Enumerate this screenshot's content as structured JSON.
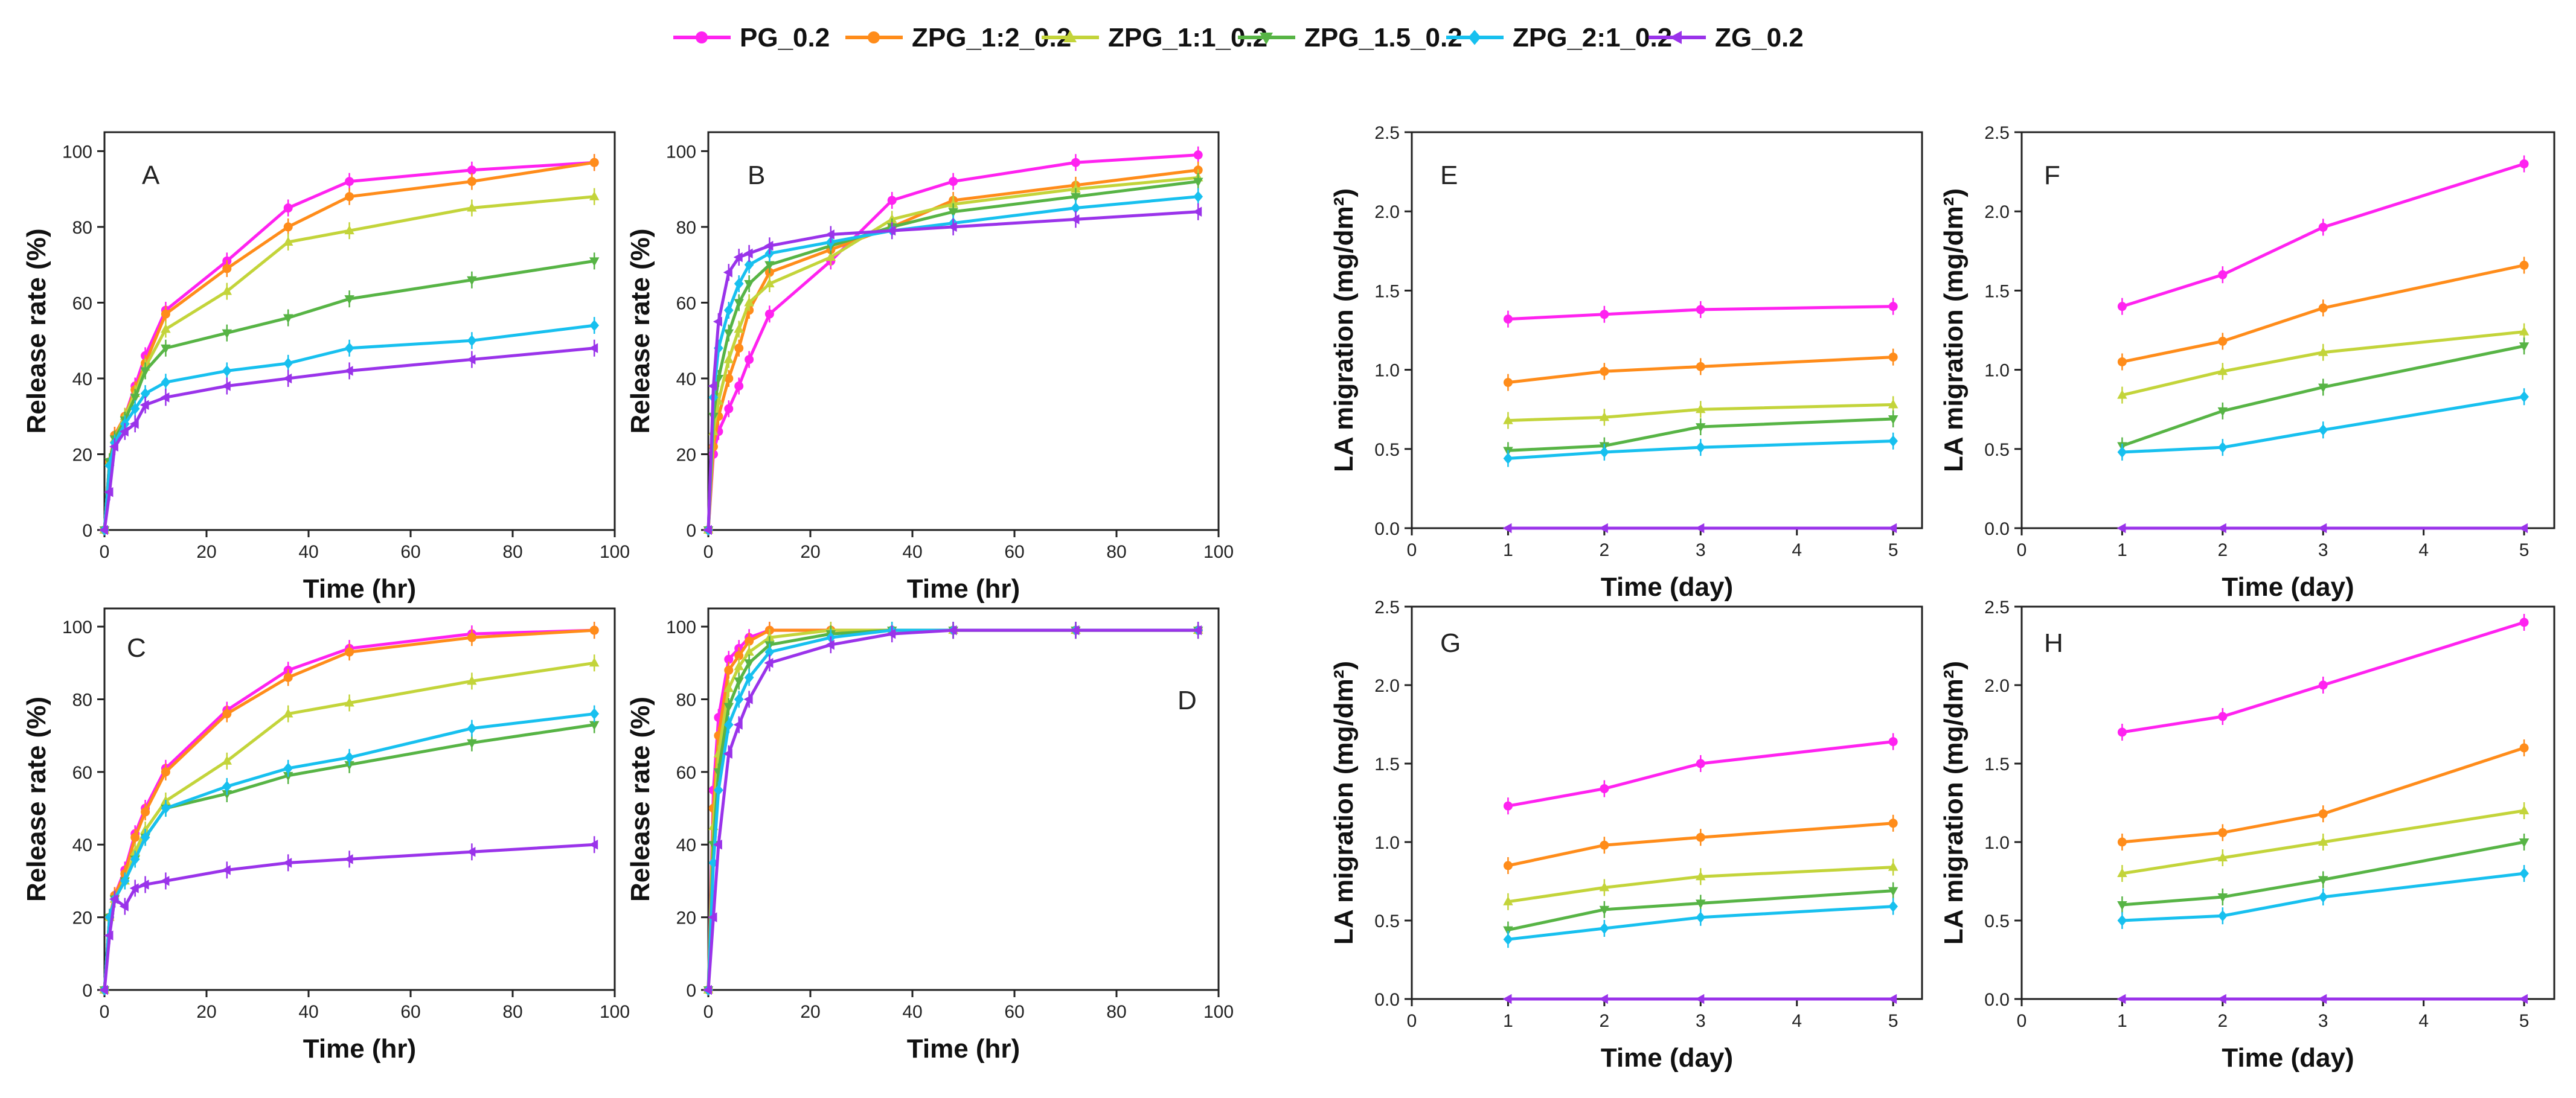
{
  "colors": {
    "PG_0.2": "#ff22f0",
    "ZPG_1:2_0.2": "#ff8c1a",
    "ZPG_1:1_0.2": "#c3d43a",
    "ZPG_1.5_0.2": "#57b445",
    "ZPG_2:1_0.2": "#17c0ef",
    "ZG_0.2": "#9a33ea"
  },
  "legend": [
    {
      "label": "PG_0.2",
      "marker": "circle"
    },
    {
      "label": "ZPG_1:2_0.2",
      "marker": "circle"
    },
    {
      "label": "ZPG_1:1_0.2",
      "marker": "triangle-up"
    },
    {
      "label": "ZPG_1.5_0.2",
      "marker": "triangle-down"
    },
    {
      "label": "ZPG_2:1_0.2",
      "marker": "diamond"
    },
    {
      "label": "ZG_0.2",
      "marker": "triangle-left"
    }
  ],
  "chart_data": [
    {
      "panel": "A",
      "type": "line",
      "xlabel": "Time (hr)",
      "ylabel": "Release rate (%)",
      "xlim": [
        0,
        100
      ],
      "ylim": [
        0,
        105
      ],
      "xticks": [
        "0",
        "20",
        "40",
        "60",
        "80",
        "100"
      ],
      "yticks": [
        "0",
        "20",
        "40",
        "60",
        "80",
        "100"
      ],
      "x": [
        0,
        1,
        2,
        4,
        6,
        8,
        12,
        24,
        36,
        48,
        72,
        96
      ],
      "series": [
        {
          "name": "PG_0.2",
          "values": [
            0,
            18,
            25,
            30,
            38,
            46,
            58,
            71,
            85,
            92,
            95,
            97
          ]
        },
        {
          "name": "ZPG_1:2_0.2",
          "values": [
            0,
            18,
            25,
            30,
            37,
            44,
            57,
            69,
            80,
            88,
            92,
            97
          ]
        },
        {
          "name": "ZPG_1:1_0.2",
          "values": [
            0,
            18,
            24,
            30,
            36,
            43,
            53,
            63,
            76,
            79,
            85,
            88
          ]
        },
        {
          "name": "ZPG_1.5_0.2",
          "values": [
            0,
            18,
            24,
            29,
            35,
            42,
            48,
            52,
            56,
            61,
            66,
            71
          ]
        },
        {
          "name": "ZPG_2:1_0.2",
          "values": [
            0,
            17,
            23,
            28,
            32,
            36,
            39,
            42,
            44,
            48,
            50,
            54
          ]
        },
        {
          "name": "ZG_0.2",
          "values": [
            0,
            10,
            22,
            26,
            28,
            33,
            35,
            38,
            40,
            42,
            45,
            48
          ]
        }
      ]
    },
    {
      "panel": "B",
      "type": "line",
      "xlabel": "Time (hr)",
      "ylabel": "Release rate (%)",
      "xlim": [
        0,
        100
      ],
      "ylim": [
        0,
        105
      ],
      "xticks": [
        "0",
        "20",
        "40",
        "60",
        "80",
        "100"
      ],
      "yticks": [
        "0",
        "20",
        "40",
        "60",
        "80",
        "100"
      ],
      "x": [
        0,
        1,
        2,
        4,
        6,
        8,
        12,
        24,
        36,
        48,
        72,
        96
      ],
      "series": [
        {
          "name": "PG_0.2",
          "values": [
            0,
            20,
            26,
            32,
            38,
            45,
            57,
            71,
            87,
            92,
            97,
            99
          ]
        },
        {
          "name": "ZPG_1:2_0.2",
          "values": [
            0,
            22,
            30,
            40,
            48,
            58,
            68,
            74,
            80,
            87,
            91,
            95
          ]
        },
        {
          "name": "ZPG_1:1_0.2",
          "values": [
            0,
            26,
            34,
            45,
            53,
            60,
            65,
            72,
            82,
            86,
            90,
            93
          ]
        },
        {
          "name": "ZPG_1.5_0.2",
          "values": [
            0,
            30,
            40,
            52,
            60,
            65,
            70,
            75,
            80,
            84,
            88,
            92
          ]
        },
        {
          "name": "ZPG_2:1_0.2",
          "values": [
            0,
            35,
            48,
            58,
            65,
            70,
            73,
            76,
            79,
            81,
            85,
            88
          ]
        },
        {
          "name": "ZG_0.2",
          "values": [
            0,
            38,
            55,
            68,
            72,
            73,
            75,
            78,
            79,
            80,
            82,
            84
          ]
        }
      ]
    },
    {
      "panel": "C",
      "type": "line",
      "xlabel": "Time (hr)",
      "ylabel": "Release rate (%)",
      "xlim": [
        0,
        100
      ],
      "ylim": [
        0,
        105
      ],
      "xticks": [
        "0",
        "20",
        "40",
        "60",
        "80",
        "100"
      ],
      "yticks": [
        "0",
        "20",
        "40",
        "60",
        "80",
        "100"
      ],
      "x": [
        0,
        1,
        2,
        4,
        6,
        8,
        12,
        24,
        36,
        48,
        72,
        96
      ],
      "series": [
        {
          "name": "PG_0.2",
          "values": [
            0,
            20,
            26,
            33,
            43,
            50,
            61,
            77,
            88,
            94,
            98,
            99
          ]
        },
        {
          "name": "ZPG_1:2_0.2",
          "values": [
            0,
            20,
            26,
            32,
            42,
            49,
            60,
            76,
            86,
            93,
            97,
            99
          ]
        },
        {
          "name": "ZPG_1:1_0.2",
          "values": [
            0,
            20,
            25,
            30,
            38,
            44,
            52,
            63,
            76,
            79,
            85,
            90
          ]
        },
        {
          "name": "ZPG_1.5_0.2",
          "values": [
            0,
            20,
            25,
            30,
            36,
            42,
            50,
            54,
            59,
            62,
            68,
            73
          ]
        },
        {
          "name": "ZPG_2:1_0.2",
          "values": [
            0,
            20,
            25,
            30,
            36,
            42,
            50,
            56,
            61,
            64,
            72,
            76
          ]
        },
        {
          "name": "ZG_0.2",
          "values": [
            0,
            15,
            25,
            23,
            28,
            29,
            30,
            33,
            35,
            36,
            38,
            40
          ]
        }
      ]
    },
    {
      "panel": "D",
      "type": "line",
      "xlabel": "Time (hr)",
      "ylabel": "Release rate (%)",
      "xlim": [
        0,
        100
      ],
      "ylim": [
        0,
        105
      ],
      "xticks": [
        "0",
        "20",
        "40",
        "60",
        "80",
        "100"
      ],
      "yticks": [
        "0",
        "20",
        "40",
        "60",
        "80",
        "100"
      ],
      "x": [
        0,
        1,
        2,
        4,
        6,
        8,
        12,
        24,
        36,
        48,
        72,
        96
      ],
      "series": [
        {
          "name": "PG_0.2",
          "values": [
            0,
            55,
            75,
            91,
            94,
            97,
            99,
            99,
            99,
            99,
            99,
            99
          ]
        },
        {
          "name": "ZPG_1:2_0.2",
          "values": [
            0,
            50,
            70,
            88,
            92,
            96,
            99,
            99,
            99,
            99,
            99,
            99
          ]
        },
        {
          "name": "ZPG_1:1_0.2",
          "values": [
            0,
            45,
            65,
            83,
            89,
            93,
            97,
            99,
            99,
            99,
            99,
            99
          ]
        },
        {
          "name": "ZPG_1.5_0.2",
          "values": [
            0,
            40,
            60,
            78,
            85,
            90,
            95,
            98,
            99,
            99,
            99,
            99
          ]
        },
        {
          "name": "ZPG_2:1_0.2",
          "values": [
            0,
            35,
            55,
            73,
            80,
            86,
            93,
            97,
            99,
            99,
            99,
            99
          ]
        },
        {
          "name": "ZG_0.2",
          "values": [
            0,
            20,
            40,
            65,
            73,
            80,
            90,
            95,
            98,
            99,
            99,
            99
          ]
        }
      ]
    },
    {
      "panel": "E",
      "type": "line",
      "xlabel": "Time (day)",
      "ylabel": "LA migration (mg/dm²)",
      "xlim": [
        0,
        5.3
      ],
      "ylim": [
        0,
        2.5
      ],
      "xticks": [
        "0",
        "1",
        "2",
        "3",
        "4",
        "5"
      ],
      "yticks": [
        "0.0",
        "0.5",
        "1.0",
        "1.5",
        "2.0",
        "2.5"
      ],
      "x": [
        1,
        2,
        3,
        5
      ],
      "series": [
        {
          "name": "PG_0.2",
          "values": [
            1.32,
            1.35,
            1.38,
            1.4
          ]
        },
        {
          "name": "ZPG_1:2_0.2",
          "values": [
            0.92,
            0.99,
            1.02,
            1.08
          ]
        },
        {
          "name": "ZPG_1:1_0.2",
          "values": [
            0.68,
            0.7,
            0.75,
            0.78
          ]
        },
        {
          "name": "ZPG_1.5_0.2",
          "values": [
            0.49,
            0.52,
            0.64,
            0.69
          ]
        },
        {
          "name": "ZPG_2:1_0.2",
          "values": [
            0.44,
            0.48,
            0.51,
            0.55
          ]
        },
        {
          "name": "ZG_0.2",
          "values": [
            0,
            0,
            0,
            0
          ]
        }
      ]
    },
    {
      "panel": "F",
      "type": "line",
      "xlabel": "Time (day)",
      "ylabel": "LA migration (mg/dm²)",
      "xlim": [
        0,
        5.3
      ],
      "ylim": [
        0,
        2.5
      ],
      "xticks": [
        "0",
        "1",
        "2",
        "3",
        "4",
        "5"
      ],
      "yticks": [
        "0.0",
        "0.5",
        "1.0",
        "1.5",
        "2.0",
        "2.5"
      ],
      "x": [
        1,
        2,
        3,
        5
      ],
      "series": [
        {
          "name": "PG_0.2",
          "values": [
            1.4,
            1.6,
            1.9,
            2.3
          ]
        },
        {
          "name": "ZPG_1:2_0.2",
          "values": [
            1.05,
            1.18,
            1.39,
            1.66
          ]
        },
        {
          "name": "ZPG_1:1_0.2",
          "values": [
            0.84,
            0.99,
            1.11,
            1.24
          ]
        },
        {
          "name": "ZPG_1.5_0.2",
          "values": [
            0.52,
            0.74,
            0.89,
            1.15
          ]
        },
        {
          "name": "ZPG_2:1_0.2",
          "values": [
            0.48,
            0.51,
            0.62,
            0.83
          ]
        },
        {
          "name": "ZG_0.2",
          "values": [
            0,
            0,
            0,
            0
          ]
        }
      ]
    },
    {
      "panel": "G",
      "type": "line",
      "xlabel": "Time (day)",
      "ylabel": "LA migration (mg/dm²)",
      "xlim": [
        0,
        5.3
      ],
      "ylim": [
        0,
        2.5
      ],
      "xticks": [
        "0",
        "1",
        "2",
        "3",
        "4",
        "5"
      ],
      "yticks": [
        "0.0",
        "0.5",
        "1.0",
        "1.5",
        "2.0",
        "2.5"
      ],
      "x": [
        1,
        2,
        3,
        5
      ],
      "series": [
        {
          "name": "PG_0.2",
          "values": [
            1.23,
            1.34,
            1.5,
            1.64
          ]
        },
        {
          "name": "ZPG_1:2_0.2",
          "values": [
            0.85,
            0.98,
            1.03,
            1.12
          ]
        },
        {
          "name": "ZPG_1:1_0.2",
          "values": [
            0.62,
            0.71,
            0.78,
            0.84
          ]
        },
        {
          "name": "ZPG_1.5_0.2",
          "values": [
            0.44,
            0.57,
            0.61,
            0.69
          ]
        },
        {
          "name": "ZPG_2:1_0.2",
          "values": [
            0.38,
            0.45,
            0.52,
            0.59
          ]
        },
        {
          "name": "ZG_0.2",
          "values": [
            0,
            0,
            0,
            0
          ]
        }
      ]
    },
    {
      "panel": "H",
      "type": "line",
      "xlabel": "Time (day)",
      "ylabel": "LA migration (mg/dm²)",
      "xlim": [
        0,
        5.3
      ],
      "ylim": [
        0,
        2.5
      ],
      "xticks": [
        "0",
        "1",
        "2",
        "3",
        "4",
        "5"
      ],
      "yticks": [
        "0.0",
        "0.5",
        "1.0",
        "1.5",
        "2.0",
        "2.5"
      ],
      "x": [
        1,
        2,
        3,
        5
      ],
      "series": [
        {
          "name": "PG_0.2",
          "values": [
            1.7,
            1.8,
            2.0,
            2.4
          ]
        },
        {
          "name": "ZPG_1:2_0.2",
          "values": [
            1.0,
            1.06,
            1.18,
            1.6
          ]
        },
        {
          "name": "ZPG_1:1_0.2",
          "values": [
            0.8,
            0.9,
            1.0,
            1.2
          ]
        },
        {
          "name": "ZPG_1.5_0.2",
          "values": [
            0.6,
            0.65,
            0.76,
            1.0
          ]
        },
        {
          "name": "ZPG_2:1_0.2",
          "values": [
            0.5,
            0.53,
            0.65,
            0.8
          ]
        },
        {
          "name": "ZG_0.2",
          "values": [
            0,
            0,
            0,
            0
          ]
        }
      ]
    }
  ]
}
